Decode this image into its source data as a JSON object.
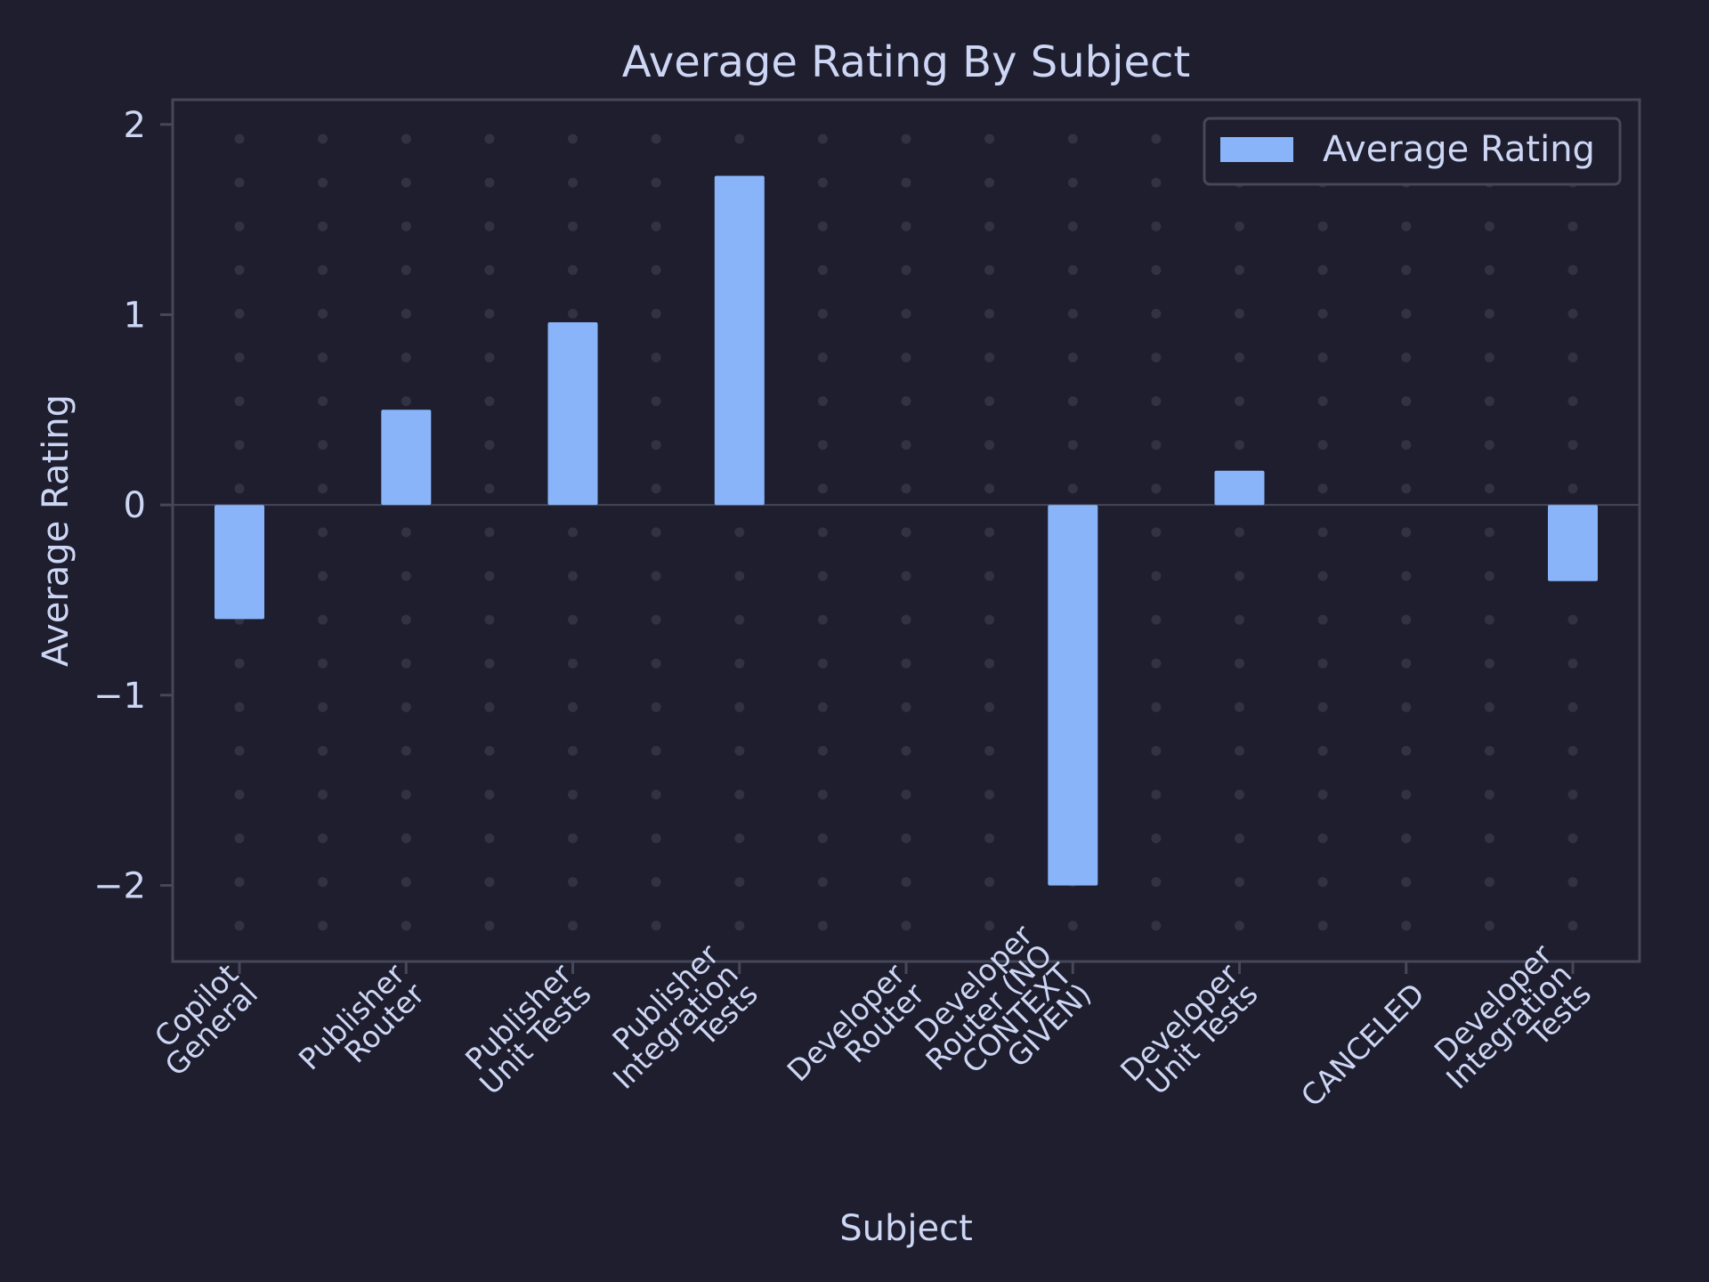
{
  "chart_data": {
    "type": "bar",
    "title": "Average Rating By Subject",
    "xlabel": "Subject",
    "ylabel": "Average Rating",
    "categories": [
      [
        "Copilot",
        "General"
      ],
      [
        "Publisher",
        "Router"
      ],
      [
        "Publisher",
        "Unit Tests"
      ],
      [
        "Publisher",
        "Integration",
        "Tests"
      ],
      [
        "Developer",
        "Router"
      ],
      [
        "Developer",
        "Router (NO",
        "CONTEXT",
        "GIVEN)"
      ],
      [
        "Developer",
        "Unit Tests"
      ],
      [
        "CANCELED"
      ],
      [
        "Developer",
        "Integration",
        "Tests"
      ]
    ],
    "series": [
      {
        "name": "Average Rating",
        "values": [
          -0.6,
          0.5,
          0.96,
          1.73,
          0,
          -2.0,
          0.18,
          0,
          -0.4
        ]
      }
    ],
    "ylim": [
      -2.4,
      2.13
    ],
    "yticks": [
      2,
      1,
      0,
      -1,
      -2
    ],
    "ytick_labels": [
      "2",
      "1",
      "0",
      "−1",
      "−2"
    ],
    "grid": "dotted",
    "legend_position": "top-right",
    "colors": {
      "background": "#1e1e2e",
      "bar": "#89b4fa",
      "text": "#cdd6f4",
      "frame": "#45475a",
      "grid_dot": "#313244"
    }
  }
}
